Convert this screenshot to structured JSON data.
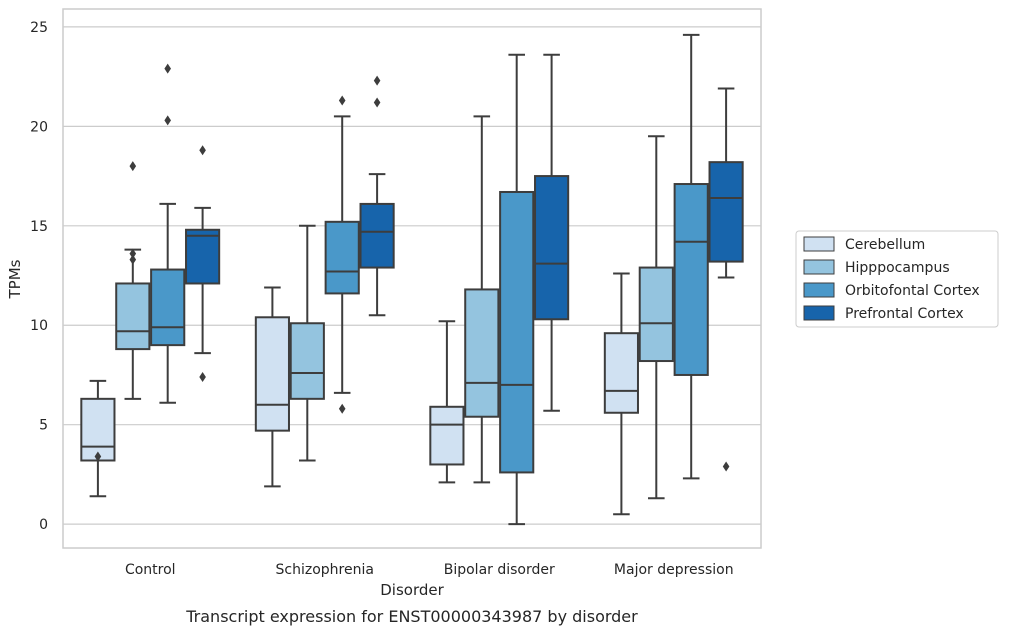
{
  "chart_data": {
    "type": "box",
    "caption": "Transcript expression for ENST00000343987 by disorder",
    "xlabel": "Disorder",
    "ylabel": "TPMs",
    "ylim": [
      -1.2,
      25.9
    ],
    "yticks": [
      0,
      5,
      10,
      15,
      20,
      25
    ],
    "grid": "horizontal",
    "legend_position": "right",
    "categories": [
      "Control",
      "Schizophrenia",
      "Bipolar disorder",
      "Major depression"
    ],
    "series": [
      {
        "name": "Cerebellum",
        "color": "#d0e1f2",
        "boxes": [
          {
            "whislo": 1.4,
            "q1": 3.2,
            "med": 3.9,
            "q3": 6.3,
            "whishi": 7.2,
            "fliers": [
              3.4
            ]
          },
          {
            "whislo": 1.9,
            "q1": 4.7,
            "med": 6.0,
            "q3": 10.4,
            "whishi": 11.9,
            "fliers": []
          },
          {
            "whislo": 2.1,
            "q1": 3.0,
            "med": 5.0,
            "q3": 5.9,
            "whishi": 10.2,
            "fliers": []
          },
          {
            "whislo": 0.5,
            "q1": 5.6,
            "med": 6.7,
            "q3": 9.6,
            "whishi": 12.6,
            "fliers": []
          }
        ]
      },
      {
        "name": "Hipppocampus",
        "color": "#94c4df",
        "boxes": [
          {
            "whislo": 6.3,
            "q1": 8.8,
            "med": 9.7,
            "q3": 12.1,
            "whishi": 13.8,
            "fliers": [
              13.3,
              13.6,
              18.0
            ]
          },
          {
            "whislo": 3.2,
            "q1": 6.3,
            "med": 7.6,
            "q3": 10.1,
            "whishi": 15.0,
            "fliers": []
          },
          {
            "whislo": 2.1,
            "q1": 5.4,
            "med": 7.1,
            "q3": 11.8,
            "whishi": 20.5,
            "fliers": []
          },
          {
            "whislo": 1.3,
            "q1": 8.2,
            "med": 10.1,
            "q3": 12.9,
            "whishi": 19.5,
            "fliers": []
          }
        ]
      },
      {
        "name": "Orbitofontal Cortex",
        "color": "#4a98c9",
        "boxes": [
          {
            "whislo": 6.1,
            "q1": 9.0,
            "med": 9.9,
            "q3": 12.8,
            "whishi": 16.1,
            "fliers": [
              20.3,
              22.9
            ]
          },
          {
            "whislo": 6.6,
            "q1": 11.6,
            "med": 12.7,
            "q3": 15.2,
            "whishi": 20.5,
            "fliers": [
              5.8,
              21.3
            ]
          },
          {
            "whislo": 0.0,
            "q1": 2.6,
            "med": 7.0,
            "q3": 16.7,
            "whishi": 23.6,
            "fliers": []
          },
          {
            "whislo": 2.3,
            "q1": 7.5,
            "med": 14.2,
            "q3": 17.1,
            "whishi": 24.6,
            "fliers": []
          }
        ]
      },
      {
        "name": "Prefrontal Cortex",
        "color": "#1764ab",
        "boxes": [
          {
            "whislo": 8.6,
            "q1": 12.1,
            "med": 14.5,
            "q3": 14.8,
            "whishi": 15.9,
            "fliers": [
              7.4,
              18.8
            ]
          },
          {
            "whislo": 10.5,
            "q1": 12.9,
            "med": 14.7,
            "q3": 16.1,
            "whishi": 17.6,
            "fliers": [
              21.2,
              22.3
            ]
          },
          {
            "whislo": 5.7,
            "q1": 10.3,
            "med": 13.1,
            "q3": 17.5,
            "whishi": 23.6,
            "fliers": []
          },
          {
            "whislo": 12.4,
            "q1": 13.2,
            "med": 16.4,
            "q3": 18.2,
            "whishi": 21.9,
            "fliers": [
              2.9
            ]
          }
        ]
      }
    ]
  }
}
